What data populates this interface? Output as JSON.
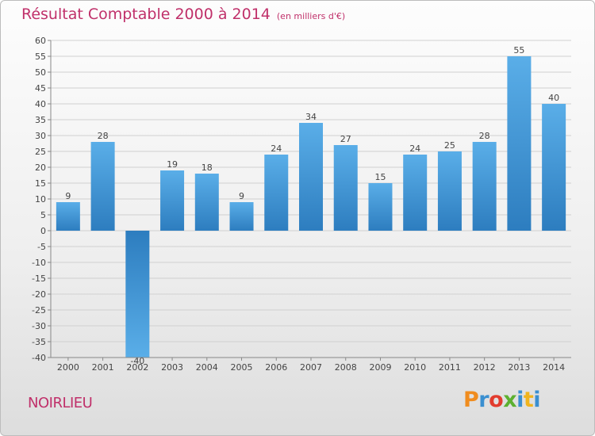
{
  "header": {
    "title": "Résultat Comptable 2000 à 2014",
    "subtitle": "(en milliers d'€)"
  },
  "footer": {
    "place_name": "NOIRLIEU",
    "logo_text": "Proxiti",
    "logo_colors": [
      "#f08c1e",
      "#3a8fd0",
      "#e23c2e",
      "#5cb030",
      "#3a8fd0",
      "#f0b41e",
      "#3a8fd0"
    ]
  },
  "chart_data": {
    "type": "bar",
    "title": "Résultat Comptable 2000 à 2014",
    "subtitle": "(en milliers d'€)",
    "categories": [
      "2000",
      "2001",
      "2002",
      "2003",
      "2004",
      "2005",
      "2006",
      "2007",
      "2008",
      "2009",
      "2010",
      "2011",
      "2012",
      "2013",
      "2014"
    ],
    "values": [
      9,
      28,
      -40,
      19,
      18,
      9,
      24,
      34,
      27,
      15,
      24,
      25,
      28,
      55,
      40
    ],
    "ylim": [
      -40,
      60
    ],
    "yticks": [
      -40,
      -35,
      -30,
      -25,
      -20,
      -15,
      -10,
      -5,
      0,
      5,
      10,
      15,
      20,
      25,
      30,
      35,
      40,
      45,
      50,
      55,
      60
    ],
    "grid": true,
    "bar_color_top": "#5aaee8",
    "bar_color_bottom": "#2d7dbf"
  }
}
